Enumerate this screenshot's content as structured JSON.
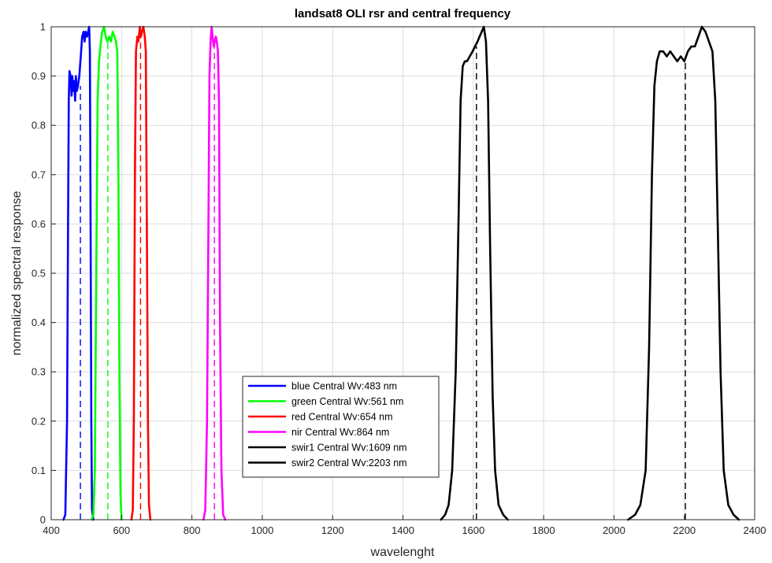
{
  "chart_data": {
    "type": "line",
    "title": "landsat8 OLI rsr and central frequency",
    "xlabel": "wavelenght",
    "ylabel": "normalized spectral response",
    "xlim": [
      400,
      2400
    ],
    "ylim": [
      0,
      1
    ],
    "xticks": [
      400,
      600,
      800,
      1000,
      1200,
      1400,
      1600,
      1800,
      2000,
      2200,
      2400
    ],
    "yticks": [
      0,
      0.1,
      0.2,
      0.3,
      0.4,
      0.5,
      0.6,
      0.7,
      0.8,
      0.9,
      1
    ],
    "grid": true,
    "legend_position": "bottom-center",
    "series": [
      {
        "name": "blue Central Wv:483 nm",
        "color": "#0000ff",
        "central_wavelength": 483,
        "points": [
          [
            435,
            0
          ],
          [
            440,
            0.01
          ],
          [
            445,
            0.2
          ],
          [
            448,
            0.6
          ],
          [
            450,
            0.85
          ],
          [
            452,
            0.91
          ],
          [
            455,
            0.9
          ],
          [
            458,
            0.86
          ],
          [
            460,
            0.9
          ],
          [
            462,
            0.87
          ],
          [
            465,
            0.89
          ],
          [
            468,
            0.85
          ],
          [
            470,
            0.9
          ],
          [
            473,
            0.87
          ],
          [
            476,
            0.88
          ],
          [
            480,
            0.9
          ],
          [
            485,
            0.95
          ],
          [
            488,
            0.98
          ],
          [
            492,
            0.99
          ],
          [
            495,
            0.97
          ],
          [
            498,
            0.99
          ],
          [
            502,
            0.98
          ],
          [
            505,
            0.99
          ],
          [
            508,
            1.0
          ],
          [
            510,
            0.95
          ],
          [
            512,
            0.6
          ],
          [
            514,
            0.2
          ],
          [
            516,
            0.02
          ],
          [
            520,
            0
          ]
        ]
      },
      {
        "name": "green Central Wv:561 nm",
        "color": "#00ff00",
        "central_wavelength": 561,
        "points": [
          [
            515,
            0
          ],
          [
            520,
            0.01
          ],
          [
            524,
            0.1
          ],
          [
            528,
            0.5
          ],
          [
            532,
            0.85
          ],
          [
            536,
            0.93
          ],
          [
            540,
            0.96
          ],
          [
            545,
            0.99
          ],
          [
            550,
            1.0
          ],
          [
            555,
            0.98
          ],
          [
            560,
            0.97
          ],
          [
            565,
            0.98
          ],
          [
            570,
            0.97
          ],
          [
            575,
            0.99
          ],
          [
            580,
            0.98
          ],
          [
            584,
            0.97
          ],
          [
            588,
            0.95
          ],
          [
            591,
            0.7
          ],
          [
            594,
            0.3
          ],
          [
            597,
            0.05
          ],
          [
            600,
            0
          ]
        ]
      },
      {
        "name": "red Central Wv:654 nm",
        "color": "#ff0000",
        "central_wavelength": 654,
        "points": [
          [
            628,
            0
          ],
          [
            632,
            0.02
          ],
          [
            635,
            0.2
          ],
          [
            638,
            0.7
          ],
          [
            641,
            0.95
          ],
          [
            645,
            0.98
          ],
          [
            648,
            0.97
          ],
          [
            652,
            1.0
          ],
          [
            655,
            0.98
          ],
          [
            658,
            0.99
          ],
          [
            662,
            1.0
          ],
          [
            666,
            0.98
          ],
          [
            669,
            0.95
          ],
          [
            672,
            0.6
          ],
          [
            675,
            0.2
          ],
          [
            678,
            0.03
          ],
          [
            682,
            0
          ]
        ]
      },
      {
        "name": "nir Central Wv:864 nm",
        "color": "#ff00ff",
        "central_wavelength": 864,
        "points": [
          [
            833,
            0
          ],
          [
            838,
            0.02
          ],
          [
            843,
            0.2
          ],
          [
            847,
            0.6
          ],
          [
            850,
            0.9
          ],
          [
            853,
            0.97
          ],
          [
            856,
            1.0
          ],
          [
            859,
            0.98
          ],
          [
            862,
            0.96
          ],
          [
            865,
            0.97
          ],
          [
            868,
            0.98
          ],
          [
            871,
            0.97
          ],
          [
            874,
            0.95
          ],
          [
            877,
            0.85
          ],
          [
            880,
            0.4
          ],
          [
            884,
            0.1
          ],
          [
            889,
            0.01
          ],
          [
            895,
            0
          ]
        ]
      },
      {
        "name": "swir1 Central Wv:1609 nm",
        "color": "#000000",
        "central_wavelength": 1609,
        "points": [
          [
            1508,
            0
          ],
          [
            1520,
            0.01
          ],
          [
            1530,
            0.03
          ],
          [
            1540,
            0.1
          ],
          [
            1550,
            0.3
          ],
          [
            1558,
            0.6
          ],
          [
            1564,
            0.85
          ],
          [
            1570,
            0.92
          ],
          [
            1576,
            0.93
          ],
          [
            1582,
            0.93
          ],
          [
            1590,
            0.94
          ],
          [
            1598,
            0.95
          ],
          [
            1605,
            0.96
          ],
          [
            1612,
            0.97
          ],
          [
            1618,
            0.98
          ],
          [
            1624,
            0.99
          ],
          [
            1630,
            1.0
          ],
          [
            1636,
            0.97
          ],
          [
            1642,
            0.85
          ],
          [
            1648,
            0.55
          ],
          [
            1655,
            0.25
          ],
          [
            1662,
            0.1
          ],
          [
            1672,
            0.03
          ],
          [
            1685,
            0.01
          ],
          [
            1698,
            0
          ]
        ]
      },
      {
        "name": "swir2 Central Wv:2203 nm",
        "color": "#000000",
        "central_wavelength": 2203,
        "points": [
          [
            2040,
            0
          ],
          [
            2060,
            0.01
          ],
          [
            2075,
            0.03
          ],
          [
            2090,
            0.1
          ],
          [
            2100,
            0.35
          ],
          [
            2108,
            0.7
          ],
          [
            2115,
            0.88
          ],
          [
            2122,
            0.93
          ],
          [
            2130,
            0.95
          ],
          [
            2140,
            0.95
          ],
          [
            2150,
            0.94
          ],
          [
            2160,
            0.95
          ],
          [
            2170,
            0.94
          ],
          [
            2180,
            0.93
          ],
          [
            2190,
            0.94
          ],
          [
            2200,
            0.93
          ],
          [
            2210,
            0.95
          ],
          [
            2220,
            0.96
          ],
          [
            2230,
            0.96
          ],
          [
            2240,
            0.98
          ],
          [
            2250,
            1.0
          ],
          [
            2260,
            0.99
          ],
          [
            2270,
            0.97
          ],
          [
            2280,
            0.95
          ],
          [
            2288,
            0.85
          ],
          [
            2295,
            0.6
          ],
          [
            2303,
            0.3
          ],
          [
            2312,
            0.1
          ],
          [
            2325,
            0.03
          ],
          [
            2340,
            0.01
          ],
          [
            2355,
            0
          ]
        ]
      }
    ],
    "central_markers": [
      {
        "x": 483,
        "color": "#0000ff",
        "ymax": 0.88
      },
      {
        "x": 561,
        "color": "#00ff00",
        "ymax": 0.97
      },
      {
        "x": 654,
        "color": "#ff0000",
        "ymax": 0.99
      },
      {
        "x": 864,
        "color": "#ff00ff",
        "ymax": 0.97
      },
      {
        "x": 1609,
        "color": "#000000",
        "ymax": 0.96
      },
      {
        "x": 2203,
        "color": "#000000",
        "ymax": 0.93
      }
    ]
  }
}
